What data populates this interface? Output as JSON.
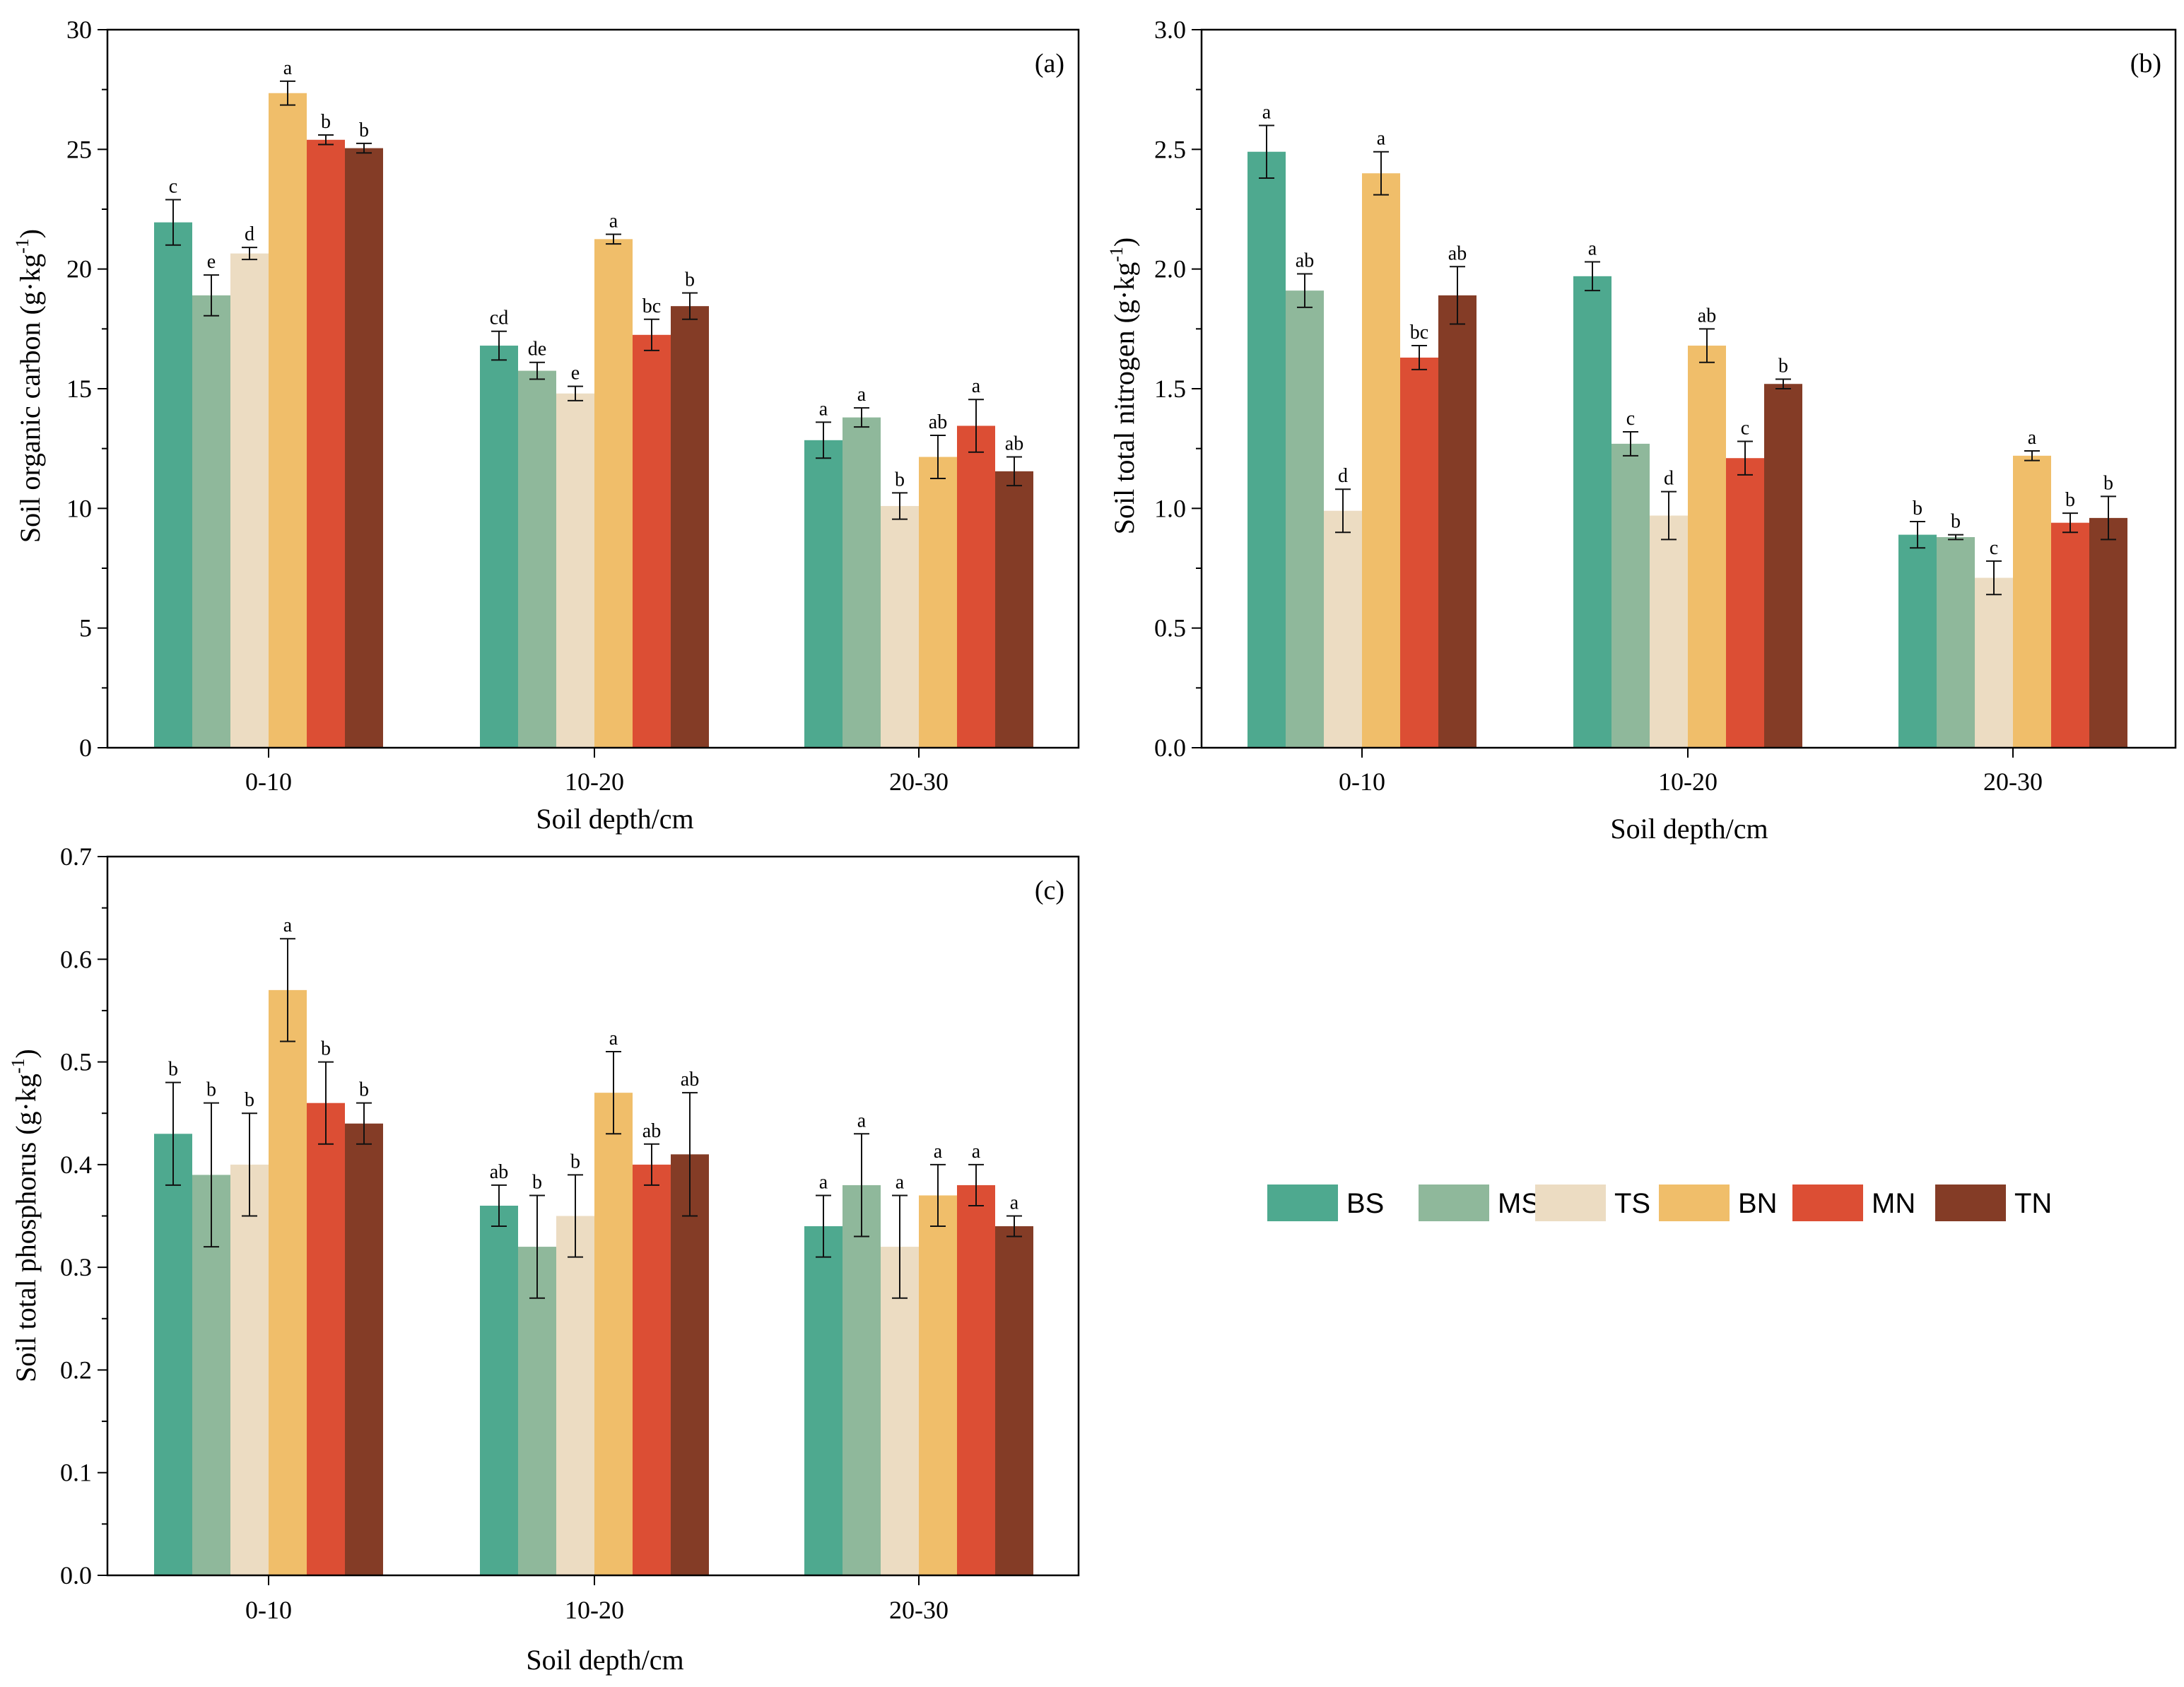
{
  "legend": [
    "BS",
    "MS",
    "TS",
    "BN",
    "MN",
    "TN"
  ],
  "colors": {
    "BS": "#4ea98f",
    "MS": "#8fb89b",
    "TS": "#ecdcc2",
    "BN": "#f0be6a",
    "MN": "#dc4e34",
    "TN": "#843c26"
  },
  "chart_data": [
    {
      "type": "bar",
      "panel": "(a)",
      "xlabel": "Soil depth/cm",
      "ylabel": "Soil organic carbon (g·kg",
      "ylabel_sup": "-1",
      "ylabel_close": ")",
      "ylim": [
        0,
        30
      ],
      "yticks": [
        0,
        5,
        10,
        15,
        20,
        25,
        30
      ],
      "ytick_labels": [
        "0",
        "5",
        "10",
        "15",
        "20",
        "25",
        "30"
      ],
      "categories": [
        "0-10",
        "10-20",
        "20-30"
      ],
      "series": [
        {
          "name": "BS",
          "values": [
            21.95,
            16.8,
            12.85
          ],
          "errors": [
            0.95,
            0.6,
            0.75
          ],
          "letters": [
            "c",
            "cd",
            "a"
          ]
        },
        {
          "name": "MS",
          "values": [
            18.9,
            15.75,
            13.8
          ],
          "errors": [
            0.85,
            0.35,
            0.4
          ],
          "letters": [
            "e",
            "de",
            "a"
          ]
        },
        {
          "name": "TS",
          "values": [
            20.65,
            14.8,
            10.1
          ],
          "errors": [
            0.25,
            0.3,
            0.55
          ],
          "letters": [
            "d",
            "e",
            "b"
          ]
        },
        {
          "name": "BN",
          "values": [
            27.35,
            21.25,
            12.15
          ],
          "errors": [
            0.5,
            0.2,
            0.9
          ],
          "letters": [
            "a",
            "a",
            "ab"
          ]
        },
        {
          "name": "MN",
          "values": [
            25.4,
            17.25,
            13.45
          ],
          "errors": [
            0.2,
            0.65,
            1.1
          ],
          "letters": [
            "b",
            "bc",
            "a"
          ]
        },
        {
          "name": "TN",
          "values": [
            25.05,
            18.45,
            11.55
          ],
          "errors": [
            0.2,
            0.55,
            0.6
          ],
          "letters": [
            "b",
            "b",
            "ab"
          ]
        }
      ]
    },
    {
      "type": "bar",
      "panel": "(b)",
      "xlabel": "Soil depth/cm",
      "ylabel": "Soil total nitrogen (g·kg",
      "ylabel_sup": "-1",
      "ylabel_close": ")",
      "ylim": [
        0,
        3.0
      ],
      "yticks": [
        0,
        0.5,
        1.0,
        1.5,
        2.0,
        2.5,
        3.0
      ],
      "ytick_labels": [
        "0.0",
        "0.5",
        "1.0",
        "1.5",
        "2.0",
        "2.5",
        "3.0"
      ],
      "categories": [
        "0-10",
        "10-20",
        "20-30"
      ],
      "series": [
        {
          "name": "BS",
          "values": [
            2.49,
            1.97,
            0.89
          ],
          "errors": [
            0.11,
            0.06,
            0.055
          ],
          "letters": [
            "a",
            "a",
            "b"
          ]
        },
        {
          "name": "MS",
          "values": [
            1.91,
            1.27,
            0.88
          ],
          "errors": [
            0.07,
            0.05,
            0.01
          ],
          "letters": [
            "ab",
            "c",
            "b"
          ]
        },
        {
          "name": "TS",
          "values": [
            0.99,
            0.97,
            0.71
          ],
          "errors": [
            0.09,
            0.1,
            0.07
          ],
          "letters": [
            "d",
            "d",
            "c"
          ]
        },
        {
          "name": "BN",
          "values": [
            2.4,
            1.68,
            1.22
          ],
          "errors": [
            0.09,
            0.07,
            0.02
          ],
          "letters": [
            "a",
            "ab",
            "a"
          ]
        },
        {
          "name": "MN",
          "values": [
            1.63,
            1.21,
            0.94
          ],
          "errors": [
            0.05,
            0.07,
            0.04
          ],
          "letters": [
            "bc",
            "c",
            "b"
          ]
        },
        {
          "name": "TN",
          "values": [
            1.89,
            1.52,
            0.96
          ],
          "errors": [
            0.12,
            0.02,
            0.09
          ],
          "letters": [
            "ab",
            "b",
            "b"
          ]
        }
      ]
    },
    {
      "type": "bar",
      "panel": "(c)",
      "xlabel": "Soil depth/cm",
      "ylabel": "Soil total phosphorus (g·kg",
      "ylabel_sup": "-1",
      "ylabel_close": ")",
      "ylim": [
        0,
        0.7
      ],
      "yticks": [
        0,
        0.1,
        0.2,
        0.3,
        0.4,
        0.5,
        0.6,
        0.7
      ],
      "ytick_labels": [
        "0.0",
        "0.1",
        "0.2",
        "0.3",
        "0.4",
        "0.5",
        "0.6",
        "0.7"
      ],
      "categories": [
        "0-10",
        "10-20",
        "20-30"
      ],
      "series": [
        {
          "name": "BS",
          "values": [
            0.43,
            0.36,
            0.34
          ],
          "errors": [
            0.05,
            0.02,
            0.03
          ],
          "letters": [
            "b",
            "ab",
            "a"
          ]
        },
        {
          "name": "MS",
          "values": [
            0.39,
            0.32,
            0.38
          ],
          "errors": [
            0.07,
            0.05,
            0.05
          ],
          "letters": [
            "b",
            "b",
            "a"
          ]
        },
        {
          "name": "TS",
          "values": [
            0.4,
            0.35,
            0.32
          ],
          "errors": [
            0.05,
            0.04,
            0.05
          ],
          "letters": [
            "b",
            "b",
            "a"
          ]
        },
        {
          "name": "BN",
          "values": [
            0.57,
            0.47,
            0.37
          ],
          "errors": [
            0.05,
            0.04,
            0.03
          ],
          "letters": [
            "a",
            "a",
            "a"
          ]
        },
        {
          "name": "MN",
          "values": [
            0.46,
            0.4,
            0.38
          ],
          "errors": [
            0.04,
            0.02,
            0.02
          ],
          "letters": [
            "b",
            "ab",
            "a"
          ]
        },
        {
          "name": "TN",
          "values": [
            0.44,
            0.41,
            0.34
          ],
          "errors": [
            0.02,
            0.06,
            0.01
          ],
          "letters": [
            "b",
            "ab",
            "a"
          ]
        }
      ]
    }
  ]
}
